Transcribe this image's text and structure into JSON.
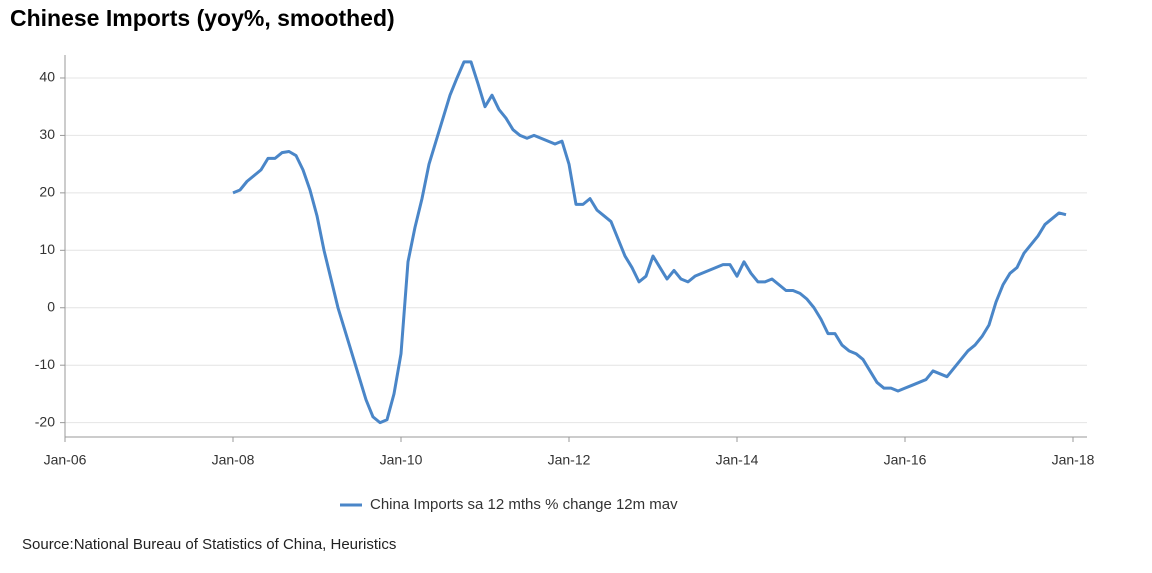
{
  "chart_data": {
    "type": "line",
    "title": "Chinese Imports (yoy%, smoothed)",
    "source": "Source:National Bureau of Statistics of China, Heuristics",
    "x": [
      "2008-01",
      "2008-02",
      "2008-03",
      "2008-04",
      "2008-05",
      "2008-06",
      "2008-07",
      "2008-08",
      "2008-09",
      "2008-10",
      "2008-11",
      "2008-12",
      "2009-01",
      "2009-02",
      "2009-03",
      "2009-04",
      "2009-05",
      "2009-06",
      "2009-07",
      "2009-08",
      "2009-09",
      "2009-10",
      "2009-11",
      "2009-12",
      "2010-01",
      "2010-02",
      "2010-03",
      "2010-04",
      "2010-05",
      "2010-06",
      "2010-07",
      "2010-08",
      "2010-09",
      "2010-10",
      "2010-11",
      "2010-12",
      "2011-01",
      "2011-02",
      "2011-03",
      "2011-04",
      "2011-05",
      "2011-06",
      "2011-07",
      "2011-08",
      "2011-09",
      "2011-10",
      "2011-11",
      "2011-12",
      "2012-01",
      "2012-02",
      "2012-03",
      "2012-04",
      "2012-05",
      "2012-06",
      "2012-07",
      "2012-08",
      "2012-09",
      "2012-10",
      "2012-11",
      "2012-12",
      "2013-01",
      "2013-02",
      "2013-03",
      "2013-04",
      "2013-05",
      "2013-06",
      "2013-07",
      "2013-08",
      "2013-09",
      "2013-10",
      "2013-11",
      "2013-12",
      "2014-01",
      "2014-02",
      "2014-03",
      "2014-04",
      "2014-05",
      "2014-06",
      "2014-07",
      "2014-08",
      "2014-09",
      "2014-10",
      "2014-11",
      "2014-12",
      "2015-01",
      "2015-02",
      "2015-03",
      "2015-04",
      "2015-05",
      "2015-06",
      "2015-07",
      "2015-08",
      "2015-09",
      "2015-10",
      "2015-11",
      "2015-12",
      "2016-01",
      "2016-02",
      "2016-03",
      "2016-04",
      "2016-05",
      "2016-06",
      "2016-07",
      "2016-08",
      "2016-09",
      "2016-10",
      "2016-11",
      "2016-12",
      "2017-01",
      "2017-02",
      "2017-03",
      "2017-04",
      "2017-05",
      "2017-06",
      "2017-07",
      "2017-08",
      "2017-09",
      "2017-10",
      "2017-11",
      "2017-12"
    ],
    "series": [
      {
        "name": "China Imports sa 12 mths % change 12m mav",
        "color": "#4a86c8",
        "values": [
          20,
          20.5,
          22,
          23,
          24,
          26,
          26,
          27,
          27.2,
          26.5,
          24,
          20.5,
          16,
          10,
          5,
          0,
          -4,
          -8,
          -12,
          -16,
          -19,
          -20,
          -19.5,
          -15,
          -8,
          8,
          14,
          19,
          25,
          29,
          33,
          37,
          40,
          42.8,
          42.8,
          39,
          35,
          37,
          34.5,
          33,
          31,
          30,
          29.5,
          30,
          29.5,
          29,
          28.5,
          29,
          25,
          18,
          18,
          19,
          17,
          16,
          15,
          12,
          9,
          7,
          4.5,
          5.5,
          9,
          7,
          5,
          6.5,
          5,
          4.5,
          5.5,
          6,
          6.5,
          7,
          7.5,
          7.5,
          5.5,
          8,
          6,
          4.5,
          4.5,
          5,
          4,
          3,
          3,
          2.5,
          1.5,
          0,
          -2,
          -4.5,
          -4.5,
          -6.5,
          -7.5,
          -8,
          -9,
          -11,
          -13,
          -14,
          -14,
          -14.5,
          -14,
          -13.5,
          -13,
          -12.5,
          -11,
          -11.5,
          -12,
          -10.5,
          -9,
          -7.5,
          -6.5,
          -5,
          -3,
          1,
          4,
          6,
          7,
          9.5,
          11,
          12.5,
          14.5,
          15.5,
          16.5,
          16.2
        ]
      }
    ],
    "xlim": [
      "2006-01",
      "2018-03"
    ],
    "xticks": [
      {
        "value": "2006-01",
        "label": "Jan-06"
      },
      {
        "value": "2008-01",
        "label": "Jan-08"
      },
      {
        "value": "2010-01",
        "label": "Jan-10"
      },
      {
        "value": "2012-01",
        "label": "Jan-12"
      },
      {
        "value": "2014-01",
        "label": "Jan-14"
      },
      {
        "value": "2016-01",
        "label": "Jan-16"
      },
      {
        "value": "2018-01",
        "label": "Jan-18"
      }
    ],
    "ylim": [
      -22.5,
      44
    ],
    "yticks": [
      -20,
      -10,
      0,
      10,
      20,
      30,
      40
    ],
    "grid": true
  }
}
